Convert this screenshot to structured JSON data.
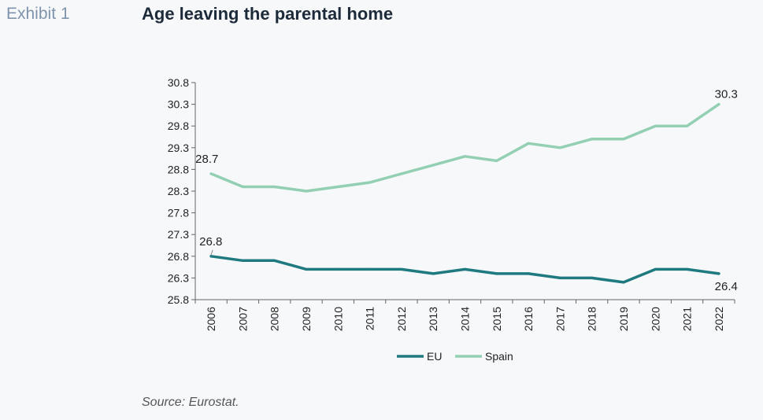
{
  "header": {
    "exhibit_label": "Exhibit 1",
    "title": "Age leaving the parental home"
  },
  "footer": {
    "source": "Source: Eurostat."
  },
  "chart_data": {
    "type": "line",
    "title": "Age leaving the parental home",
    "xlabel": "",
    "ylabel": "",
    "x": [
      "2006",
      "2007",
      "2008",
      "2009",
      "2010",
      "2011",
      "2012",
      "2013",
      "2014",
      "2015",
      "2016",
      "2017",
      "2018",
      "2019",
      "2020",
      "2021",
      "2022"
    ],
    "ylim": [
      25.8,
      30.8
    ],
    "yticks": [
      "30.8",
      "30.3",
      "29.8",
      "29.3",
      "28.8",
      "28.3",
      "27.8",
      "27.3",
      "26.8",
      "26.3",
      "25.8"
    ],
    "grid": false,
    "legend_position": "bottom",
    "series": [
      {
        "name": "EU",
        "color": "#1f7a80",
        "values": [
          26.8,
          26.7,
          26.7,
          26.5,
          26.5,
          26.5,
          26.5,
          26.4,
          26.5,
          26.4,
          26.4,
          26.3,
          26.3,
          26.2,
          26.5,
          26.5,
          26.4
        ]
      },
      {
        "name": "Spain",
        "color": "#93cfb3",
        "values": [
          28.7,
          28.4,
          28.4,
          28.3,
          28.4,
          28.5,
          28.7,
          28.9,
          29.1,
          29.0,
          29.4,
          29.3,
          29.5,
          29.5,
          29.8,
          29.8,
          30.3
        ]
      }
    ],
    "annotations": [
      {
        "series": "Spain",
        "index": 0,
        "text": "28.7",
        "anchor": "start"
      },
      {
        "series": "Spain",
        "index": 16,
        "text": "30.3",
        "anchor": "end"
      },
      {
        "series": "EU",
        "index": 0,
        "text": "26.8",
        "anchor": "start"
      },
      {
        "series": "EU",
        "index": 16,
        "text": "26.4",
        "anchor": "end"
      }
    ]
  }
}
